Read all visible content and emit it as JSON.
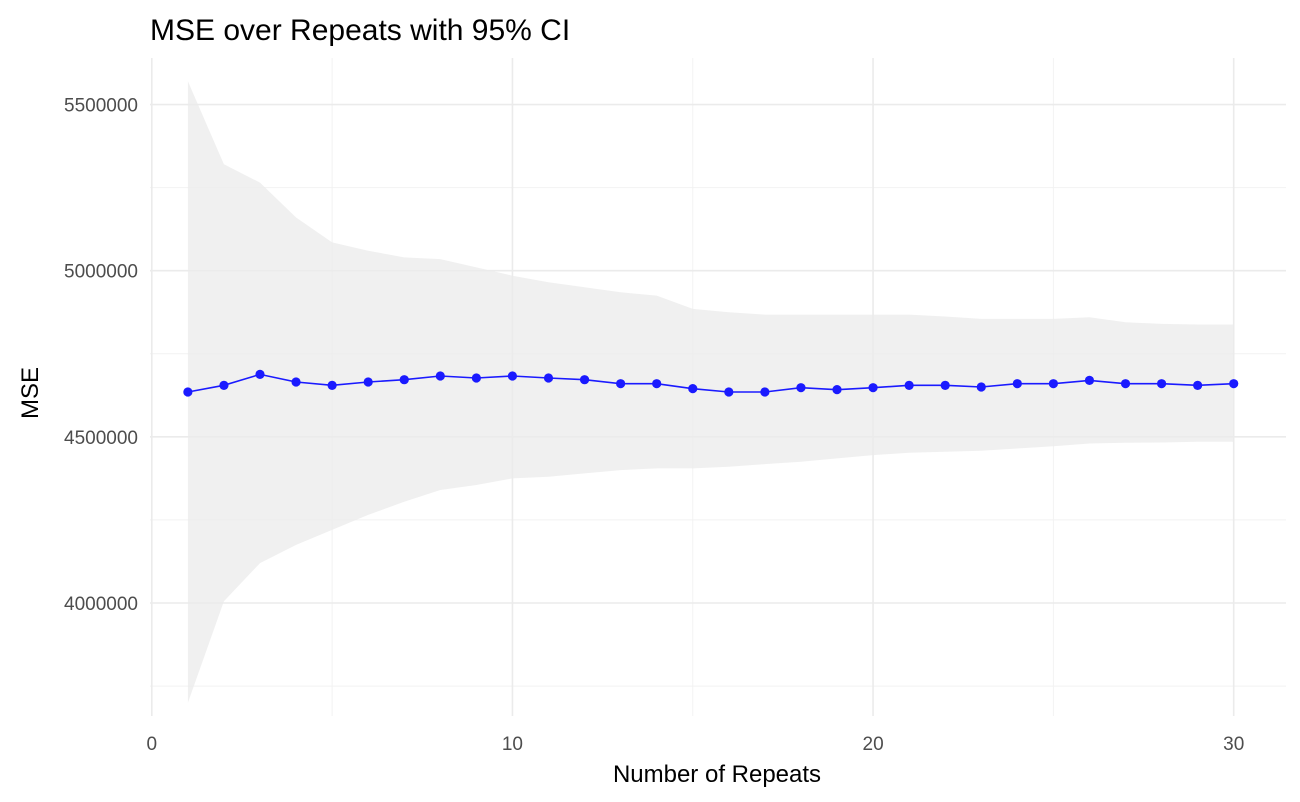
{
  "chart_data": {
    "type": "line",
    "title": "MSE over Repeats with 95% CI",
    "xlabel": "Number of Repeats",
    "ylabel": "MSE",
    "xlim": [
      -0.05,
      31.45
    ],
    "ylim": [
      3660000,
      5640000
    ],
    "x_ticks": [
      0,
      10,
      20,
      30
    ],
    "y_ticks": [
      4000000,
      4500000,
      5000000,
      5500000
    ],
    "x_minor_ticks": [
      5,
      15,
      25
    ],
    "y_minor_ticks": [
      3750000,
      4250000,
      4750000,
      5250000
    ],
    "grid": true,
    "legend": "none",
    "colors": {
      "line": "#1a1aff",
      "point": "#1a1aff",
      "ribbon": "#ebebeb"
    },
    "x": [
      1,
      2,
      3,
      4,
      5,
      6,
      7,
      8,
      9,
      10,
      11,
      12,
      13,
      14,
      15,
      16,
      17,
      18,
      19,
      20,
      21,
      22,
      23,
      24,
      25,
      26,
      27,
      28,
      29,
      30
    ],
    "series": [
      {
        "values": [
          4635000,
          4655000,
          4688000,
          4665000,
          4655000,
          4665000,
          4672000,
          4683000,
          4677000,
          4683000,
          4677000,
          4672000,
          4660000,
          4660000,
          4645000,
          4635000,
          4635000,
          4648000,
          4642000,
          4648000,
          4655000,
          4655000,
          4650000,
          4660000,
          4660000,
          4670000,
          4660000,
          4660000,
          4655000,
          4660000
        ],
        "ci_upper": [
          5570000,
          5320000,
          5265000,
          5160000,
          5085000,
          5060000,
          5040000,
          5035000,
          5010000,
          4985000,
          4965000,
          4950000,
          4935000,
          4925000,
          4885000,
          4875000,
          4868000,
          4868000,
          4868000,
          4868000,
          4868000,
          4862000,
          4855000,
          4855000,
          4855000,
          4860000,
          4845000,
          4840000,
          4838000,
          4838000
        ],
        "ci_lower": [
          3700000,
          4005000,
          4120000,
          4175000,
          4220000,
          4265000,
          4305000,
          4340000,
          4355000,
          4375000,
          4380000,
          4390000,
          4400000,
          4405000,
          4405000,
          4410000,
          4418000,
          4425000,
          4435000,
          4445000,
          4452000,
          4455000,
          4458000,
          4465000,
          4472000,
          4480000,
          4482000,
          4483000,
          4485000,
          4485000
        ]
      }
    ]
  }
}
